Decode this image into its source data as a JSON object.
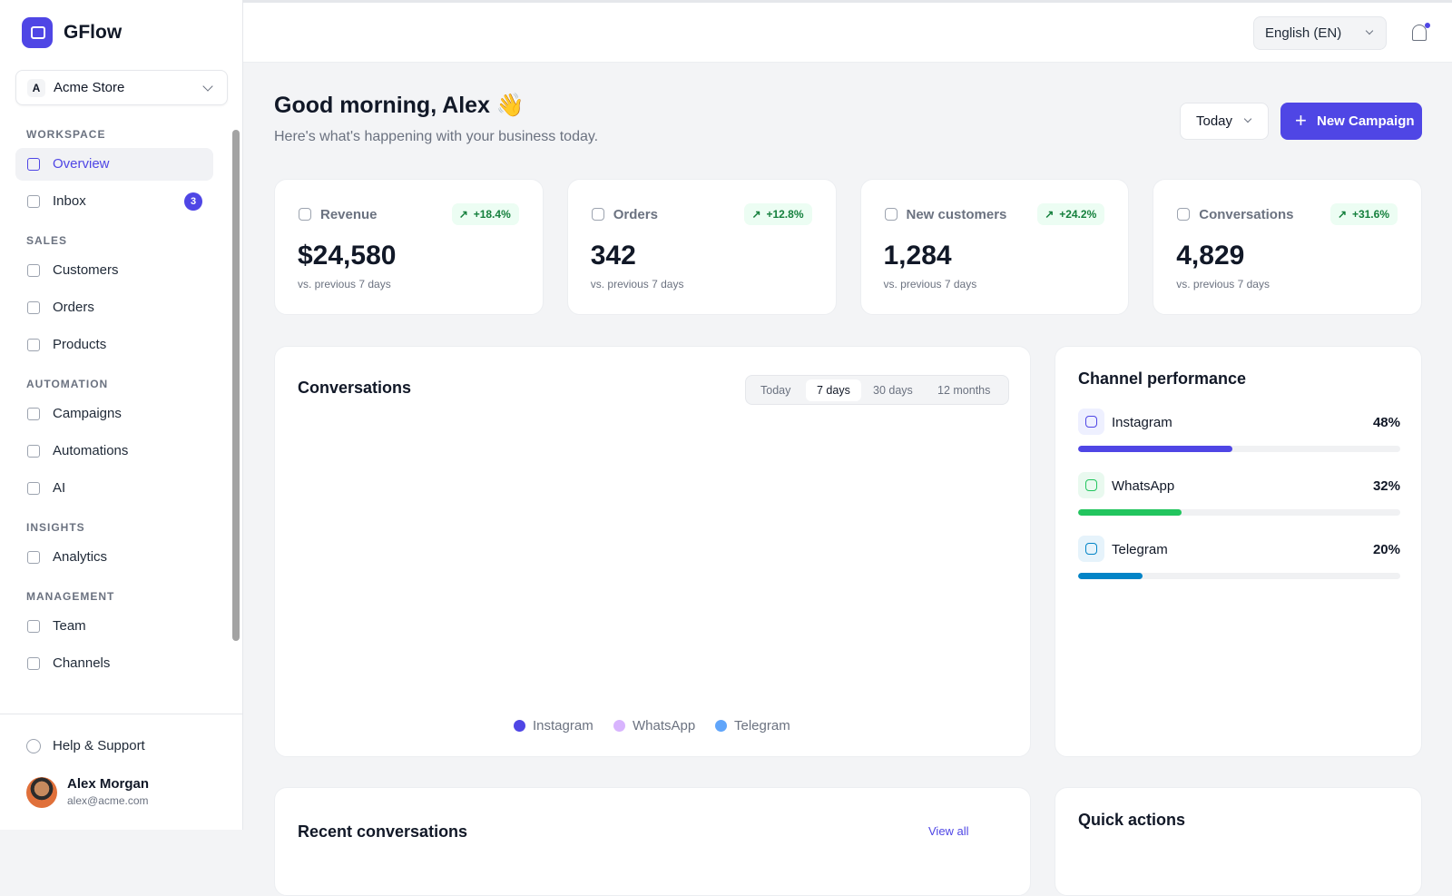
{
  "brand": "GFlow",
  "store": {
    "initial": "A",
    "name": "Acme Store"
  },
  "nav": [
    {
      "section": "WORKSPACE",
      "items": [
        {
          "label": "Overview",
          "active": true
        },
        {
          "label": "Inbox",
          "badge": "3"
        }
      ]
    },
    {
      "section": "SALES",
      "items": [
        {
          "label": "Customers"
        },
        {
          "label": "Orders"
        },
        {
          "label": "Products"
        }
      ]
    },
    {
      "section": "AUTOMATION",
      "items": [
        {
          "label": "Campaigns"
        },
        {
          "label": "Automations"
        },
        {
          "label": "AI"
        }
      ]
    },
    {
      "section": "INSIGHTS",
      "items": [
        {
          "label": "Analytics"
        }
      ]
    },
    {
      "section": "MANAGEMENT",
      "items": [
        {
          "label": "Team"
        },
        {
          "label": "Channels"
        }
      ]
    }
  ],
  "help": "Help & Support",
  "user": {
    "name": "Alex Morgan",
    "email": "alex@acme.com"
  },
  "topbar": {
    "language": "English (EN)"
  },
  "header": {
    "greeting": "Good morning, Alex 👋",
    "subtitle": "Here's what's happening with your business today.",
    "period": "Today",
    "button": "New Campaign"
  },
  "stats": [
    {
      "label": "Revenue",
      "change": "+18.4%",
      "value": "$24,580",
      "note": "vs. previous 7 days"
    },
    {
      "label": "Orders",
      "change": "+12.8%",
      "value": "342",
      "note": "vs. previous 7 days"
    },
    {
      "label": "New customers",
      "change": "+24.2%",
      "value": "1,284",
      "note": "vs. previous 7 days"
    },
    {
      "label": "Conversations",
      "change": "+31.6%",
      "value": "4,829",
      "note": "vs. previous 7 days"
    }
  ],
  "conversations": {
    "title": "Conversations",
    "tabs": [
      "Today",
      "7 days",
      "30 days",
      "12 months"
    ],
    "active_tab": 1,
    "legend": [
      {
        "name": "Instagram",
        "color": "#4f46e5"
      },
      {
        "name": "WhatsApp",
        "color": "#d8b4fe"
      },
      {
        "name": "Telegram",
        "color": "#60a5fa"
      }
    ]
  },
  "channels": {
    "title": "Channel performance",
    "items": [
      {
        "name": "Instagram",
        "value": 48,
        "value_label": "48%",
        "color": "#4f46e5",
        "icon_bg": "#eef0ff"
      },
      {
        "name": "WhatsApp",
        "value": 32,
        "value_label": "32%",
        "color": "#22c55e",
        "icon_bg": "#e9f9ef"
      },
      {
        "name": "Telegram",
        "value": 20,
        "value_label": "20%",
        "color": "#0284c7",
        "icon_bg": "#e6f3fb"
      }
    ]
  },
  "recent": {
    "title": "Recent conversations",
    "link": "View all"
  },
  "quick": {
    "title": "Quick actions"
  }
}
